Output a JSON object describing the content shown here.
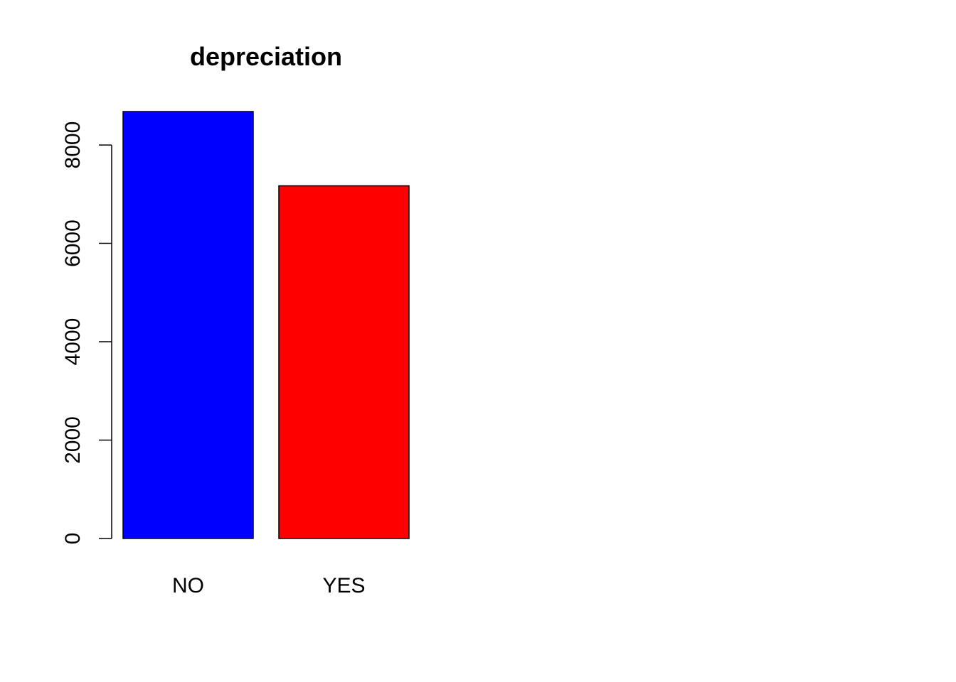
{
  "chart_data": {
    "type": "bar",
    "title": "depreciation",
    "xlabel": "",
    "ylabel": "",
    "categories": [
      "NO",
      "YES"
    ],
    "values": [
      8680,
      7170
    ],
    "colors": [
      "#0000ff",
      "#ff0000"
    ],
    "ylim": [
      0,
      8680
    ],
    "yticks": [
      0,
      2000,
      4000,
      6000,
      8000
    ],
    "ytick_labels": [
      "0",
      "2000",
      "4000",
      "6000",
      "8000"
    ],
    "grid": false,
    "legend": "none"
  }
}
